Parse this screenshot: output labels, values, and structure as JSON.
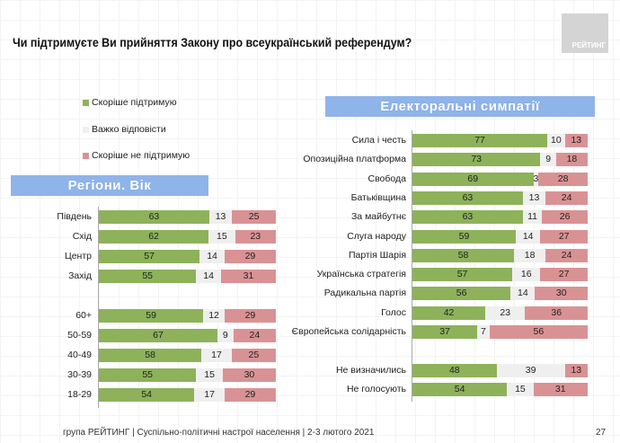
{
  "title": "Чи підтримуєте Ви прийняття Закону про всеукраїнський референдум?",
  "logo": "РЕЙТИНГ",
  "legend": [
    {
      "label": "Скоріше підтримую",
      "color": "#8db25a"
    },
    {
      "label": "Важко відповісти",
      "color": "#efefef"
    },
    {
      "label": "Скоріше не підтримую",
      "color": "#d99294"
    }
  ],
  "footer": "група РЕЙТИНГ | Суспільно-політичні настрої населення  | 2-3 лютого 2021",
  "page_number": "27",
  "chart_data": [
    {
      "type": "bar",
      "stacked": true,
      "orientation": "horizontal",
      "title": "Регіони. Вік",
      "series_names": [
        "Скоріше підтримую",
        "Важко відповісти",
        "Скоріше не підтримую"
      ],
      "categories": [
        "Південь",
        "Схід",
        "Центр",
        "Захід",
        "",
        "60+",
        "50-59",
        "40-49",
        "30-39",
        "18-29"
      ],
      "values": [
        [
          63,
          13,
          25
        ],
        [
          62,
          15,
          23
        ],
        [
          57,
          14,
          29
        ],
        [
          55,
          14,
          31
        ],
        null,
        [
          59,
          12,
          29
        ],
        [
          67,
          9,
          24
        ],
        [
          58,
          17,
          25
        ],
        [
          55,
          15,
          30
        ],
        [
          54,
          17,
          29
        ]
      ]
    },
    {
      "type": "bar",
      "stacked": true,
      "orientation": "horizontal",
      "title": "Електоральні симпатії",
      "series_names": [
        "Скоріше підтримую",
        "Важко відповісти",
        "Скоріше не підтримую"
      ],
      "categories": [
        "Сила і честь",
        "Опозиційна платформа",
        "Свобода",
        "Батьківщина",
        "За майбутнє",
        "Слуга народу",
        "Партія Шарія",
        "Українська стратегія",
        "Радикальна партія",
        "Голос",
        "Європейська солідарність",
        "",
        "Не визначились",
        "Не голосують"
      ],
      "values": [
        [
          77,
          10,
          13
        ],
        [
          73,
          9,
          18
        ],
        [
          69,
          3,
          28
        ],
        [
          63,
          13,
          24
        ],
        [
          63,
          11,
          26
        ],
        [
          59,
          14,
          27
        ],
        [
          58,
          18,
          24
        ],
        [
          57,
          16,
          27
        ],
        [
          56,
          14,
          30
        ],
        [
          42,
          23,
          36
        ],
        [
          37,
          7,
          56
        ],
        null,
        [
          48,
          39,
          13
        ],
        [
          54,
          15,
          31
        ]
      ]
    }
  ]
}
